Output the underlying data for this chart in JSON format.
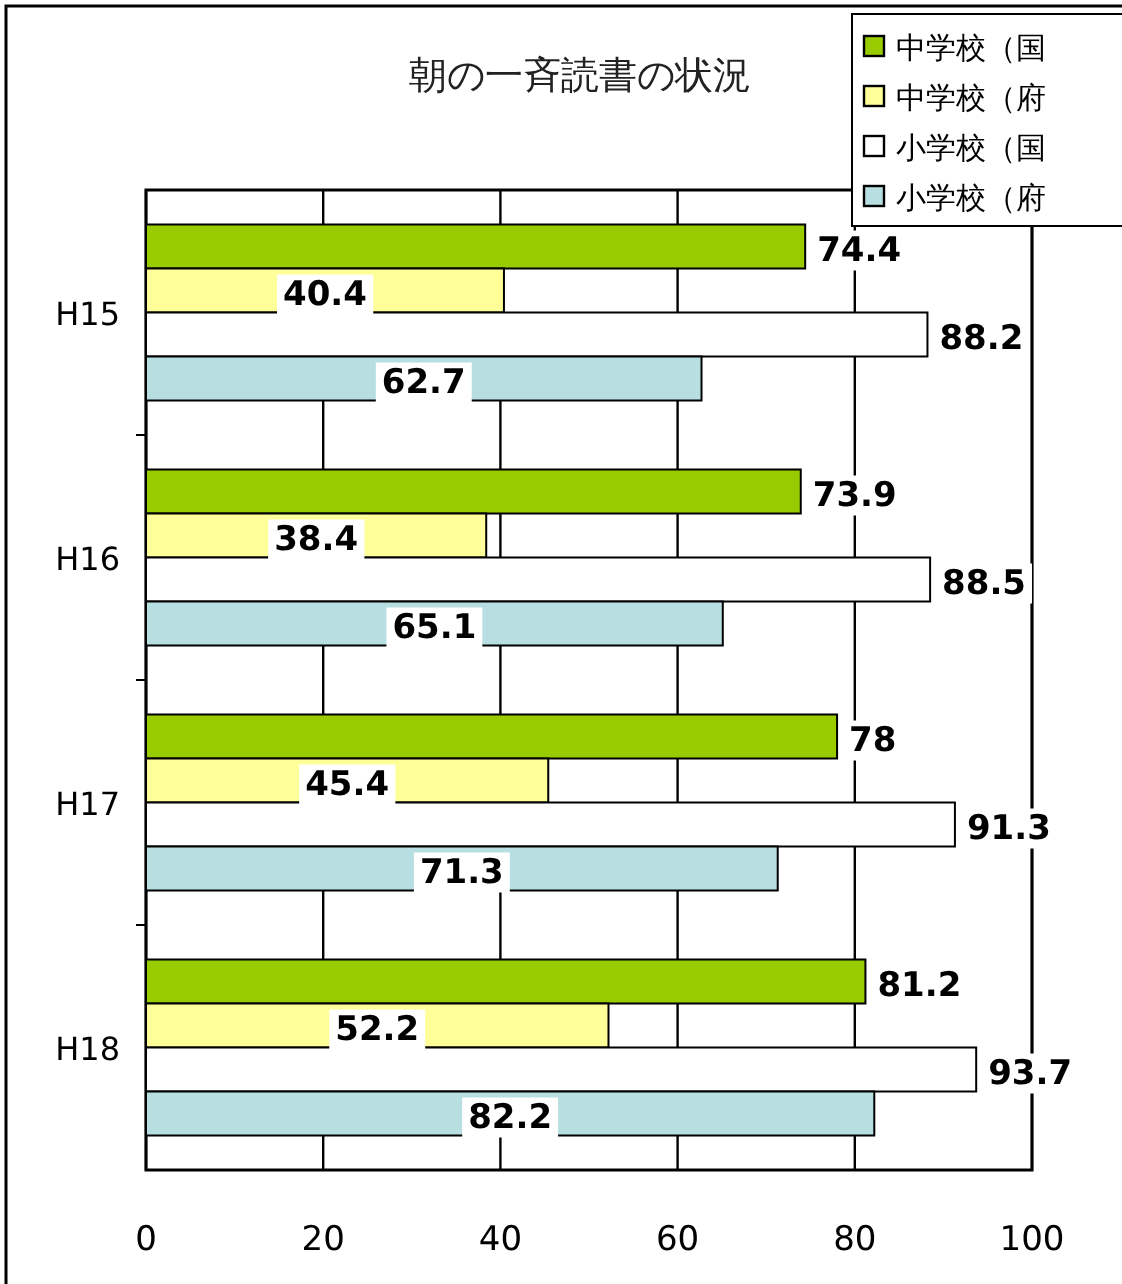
{
  "chart_data": {
    "type": "bar",
    "orientation": "horizontal",
    "title": "朝の一斉読書の状況",
    "categories": [
      "H15",
      "H16",
      "H17",
      "H18"
    ],
    "series": [
      {
        "name": "中学校（国",
        "color": "#99cc00",
        "values": [
          74.4,
          73.9,
          78,
          81.2
        ]
      },
      {
        "name": "中学校（府",
        "color": "#ffff99",
        "values": [
          40.4,
          38.4,
          45.4,
          52.2
        ]
      },
      {
        "name": "小学校（国",
        "color": "#ffffff",
        "values": [
          88.2,
          88.5,
          91.3,
          93.7
        ]
      },
      {
        "name": "小学校（府",
        "color": "#b7dee0",
        "values": [
          62.7,
          65.1,
          71.3,
          82.2
        ]
      }
    ],
    "xlim": [
      0,
      100
    ],
    "xticks": [
      0,
      20,
      40,
      60,
      80,
      100
    ],
    "grid": "x",
    "legend": "top right",
    "data_labels": true
  }
}
